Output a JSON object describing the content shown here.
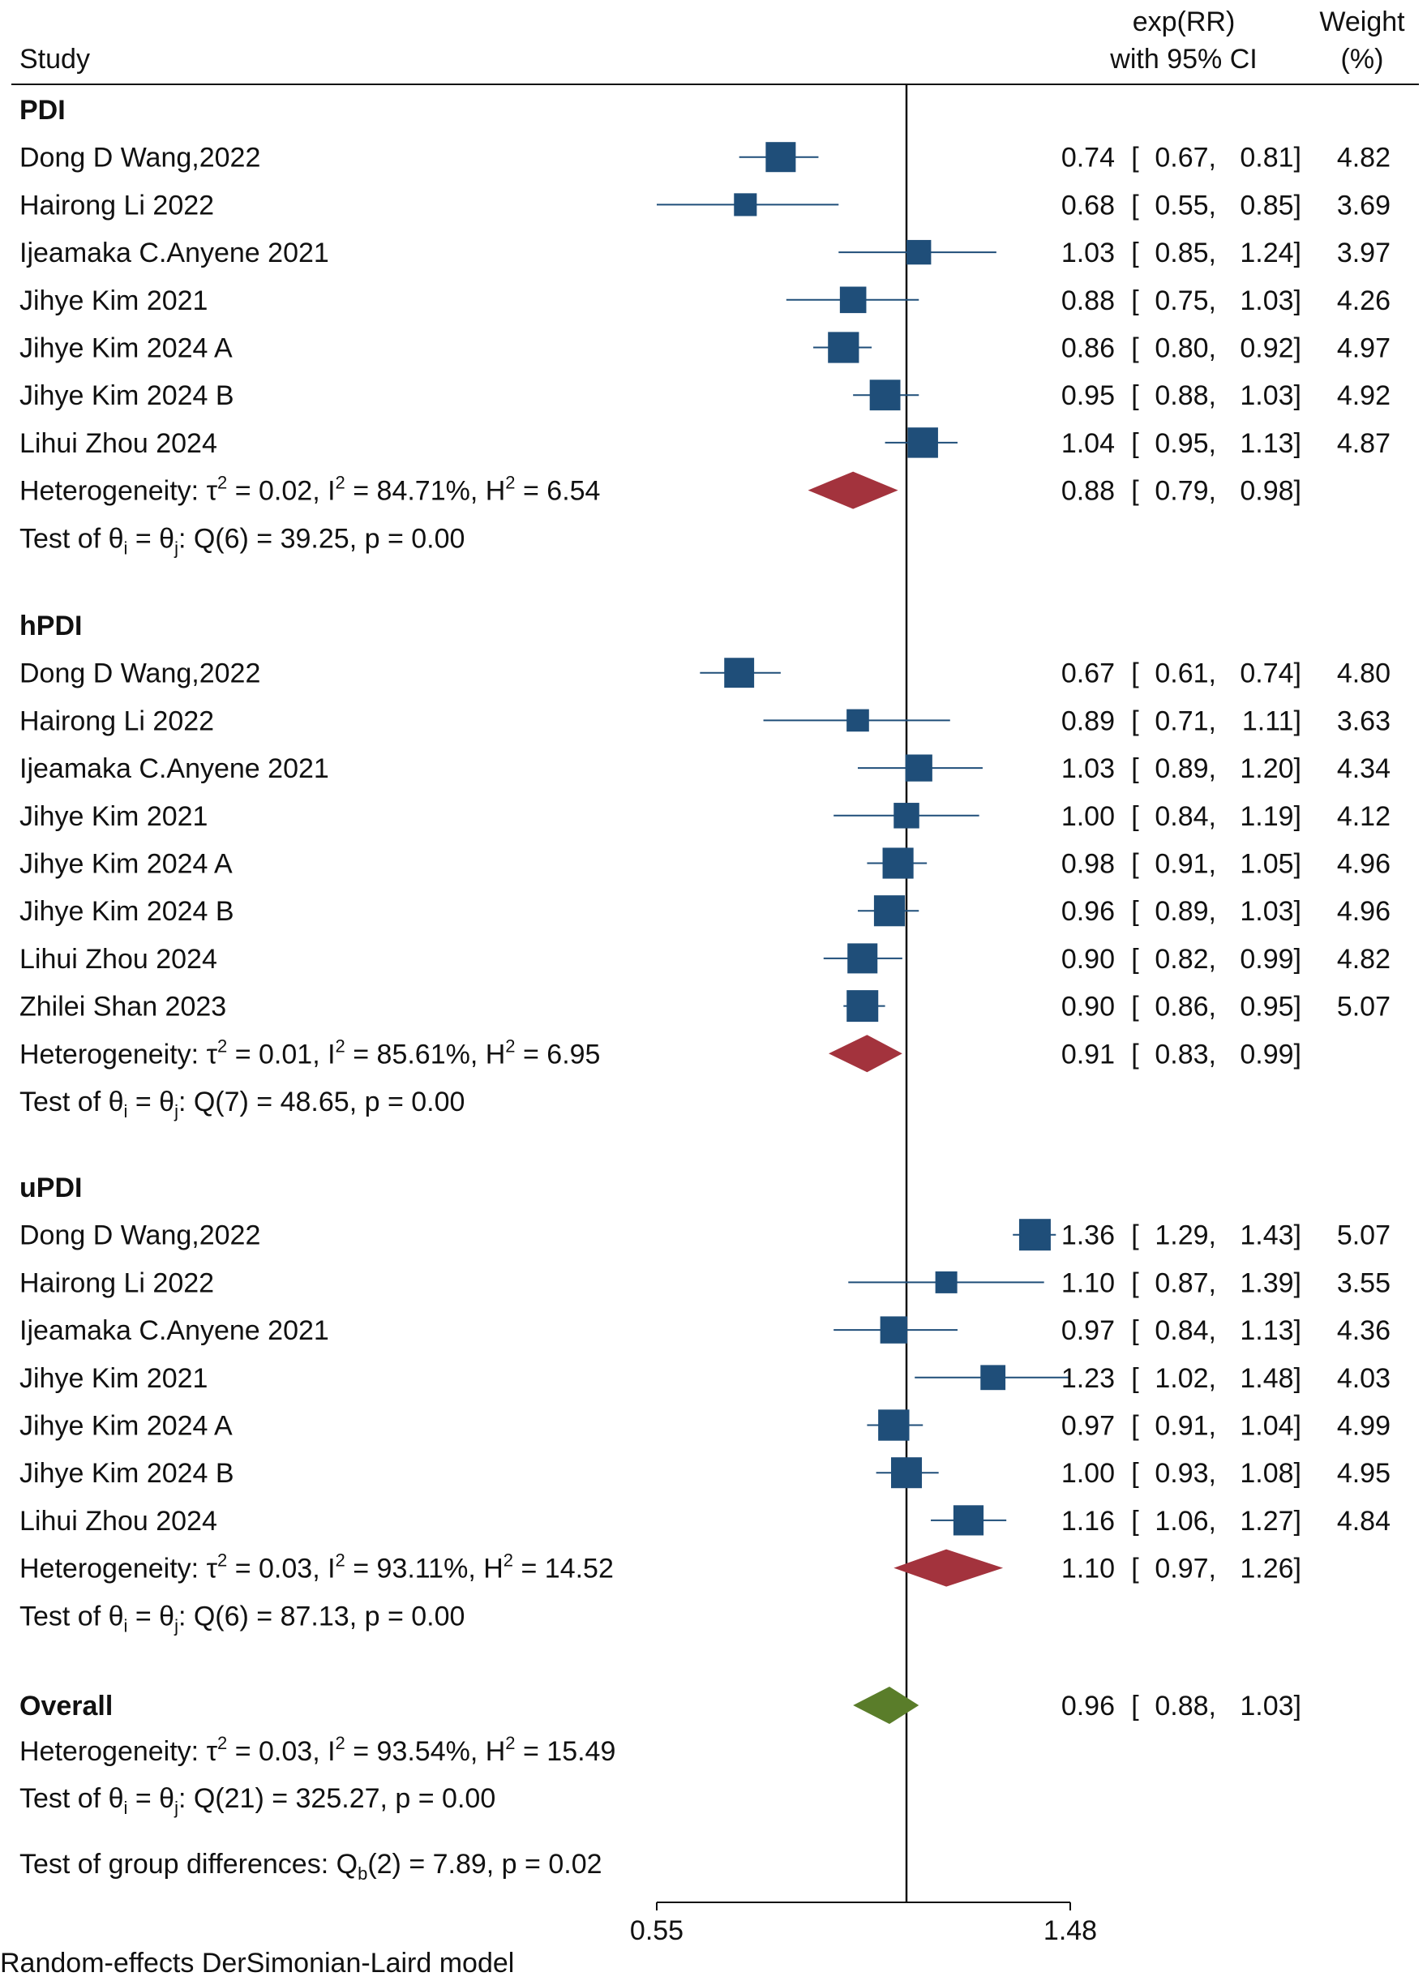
{
  "chart_data": {
    "type": "forest",
    "header": {
      "study": "Study",
      "effect_line1": "exp(RR)",
      "effect_line2": "with 95% CI",
      "weight_line1": "Weight",
      "weight_line2": "(%)"
    },
    "x_axis": {
      "scale": "log",
      "min": 0.55,
      "max": 1.48,
      "null_line": 1.0,
      "tick_labels": [
        "0.55",
        "1.48"
      ]
    },
    "groups": [
      {
        "name": "PDI",
        "studies": [
          {
            "label": "Dong D Wang,2022",
            "rr": 0.74,
            "lo": 0.67,
            "hi": 0.81,
            "rr_text": "0.74",
            "lo_text": "0.67",
            "hi_text": "0.81",
            "weight": "4.82"
          },
          {
            "label": "Hairong Li 2022",
            "rr": 0.68,
            "lo": 0.55,
            "hi": 0.85,
            "rr_text": "0.68",
            "lo_text": "0.55",
            "hi_text": "0.85",
            "weight": "3.69"
          },
          {
            "label": "Ijeamaka C.Anyene 2021",
            "rr": 1.03,
            "lo": 0.85,
            "hi": 1.24,
            "rr_text": "1.03",
            "lo_text": "0.85",
            "hi_text": "1.24",
            "weight": "3.97"
          },
          {
            "label": "Jihye Kim 2021",
            "rr": 0.88,
            "lo": 0.75,
            "hi": 1.03,
            "rr_text": "0.88",
            "lo_text": "0.75",
            "hi_text": "1.03",
            "weight": "4.26"
          },
          {
            "label": "Jihye Kim 2024 A",
            "rr": 0.86,
            "lo": 0.8,
            "hi": 0.92,
            "rr_text": "0.86",
            "lo_text": "0.80",
            "hi_text": "0.92",
            "weight": "4.97"
          },
          {
            "label": "Jihye Kim 2024 B",
            "rr": 0.95,
            "lo": 0.88,
            "hi": 1.03,
            "rr_text": "0.95",
            "lo_text": "0.88",
            "hi_text": "1.03",
            "weight": "4.92"
          },
          {
            "label": "Lihui Zhou 2024",
            "rr": 1.04,
            "lo": 0.95,
            "hi": 1.13,
            "rr_text": "1.04",
            "lo_text": "0.95",
            "hi_text": "1.13",
            "weight": "4.87"
          }
        ],
        "pooled": {
          "rr": 0.88,
          "lo": 0.79,
          "hi": 0.98,
          "rr_text": "0.88",
          "lo_text": "0.79",
          "hi_text": "0.98"
        },
        "heterogeneity": {
          "tau2": "0.02",
          "i2": "84.71%",
          "h2": "6.54"
        },
        "test": {
          "df": "6",
          "q": "39.25",
          "p": "0.00"
        }
      },
      {
        "name": "hPDI",
        "studies": [
          {
            "label": "Dong D Wang,2022",
            "rr": 0.67,
            "lo": 0.61,
            "hi": 0.74,
            "rr_text": "0.67",
            "lo_text": "0.61",
            "hi_text": "0.74",
            "weight": "4.80"
          },
          {
            "label": "Hairong Li 2022",
            "rr": 0.89,
            "lo": 0.71,
            "hi": 1.11,
            "rr_text": "0.89",
            "lo_text": "0.71",
            "hi_text": "1.11",
            "weight": "3.63"
          },
          {
            "label": "Ijeamaka C.Anyene 2021",
            "rr": 1.03,
            "lo": 0.89,
            "hi": 1.2,
            "rr_text": "1.03",
            "lo_text": "0.89",
            "hi_text": "1.20",
            "weight": "4.34"
          },
          {
            "label": "Jihye Kim 2021",
            "rr": 1.0,
            "lo": 0.84,
            "hi": 1.19,
            "rr_text": "1.00",
            "lo_text": "0.84",
            "hi_text": "1.19",
            "weight": "4.12"
          },
          {
            "label": "Jihye Kim 2024 A",
            "rr": 0.98,
            "lo": 0.91,
            "hi": 1.05,
            "rr_text": "0.98",
            "lo_text": "0.91",
            "hi_text": "1.05",
            "weight": "4.96"
          },
          {
            "label": "Jihye Kim 2024 B",
            "rr": 0.96,
            "lo": 0.89,
            "hi": 1.03,
            "rr_text": "0.96",
            "lo_text": "0.89",
            "hi_text": "1.03",
            "weight": "4.96"
          },
          {
            "label": "Lihui Zhou 2024",
            "rr": 0.9,
            "lo": 0.82,
            "hi": 0.99,
            "rr_text": "0.90",
            "lo_text": "0.82",
            "hi_text": "0.99",
            "weight": "4.82"
          },
          {
            "label": "Zhilei Shan 2023",
            "rr": 0.9,
            "lo": 0.86,
            "hi": 0.95,
            "rr_text": "0.90",
            "lo_text": "0.86",
            "hi_text": "0.95",
            "weight": "5.07"
          }
        ],
        "pooled": {
          "rr": 0.91,
          "lo": 0.83,
          "hi": 0.99,
          "rr_text": "0.91",
          "lo_text": "0.83",
          "hi_text": "0.99"
        },
        "heterogeneity": {
          "tau2": "0.01",
          "i2": "85.61%",
          "h2": "6.95"
        },
        "test": {
          "df": "7",
          "q": "48.65",
          "p": "0.00"
        }
      },
      {
        "name": "uPDI",
        "studies": [
          {
            "label": "Dong D Wang,2022",
            "rr": 1.36,
            "lo": 1.29,
            "hi": 1.43,
            "rr_text": "1.36",
            "lo_text": "1.29",
            "hi_text": "1.43",
            "weight": "5.07"
          },
          {
            "label": "Hairong Li 2022",
            "rr": 1.1,
            "lo": 0.87,
            "hi": 1.39,
            "rr_text": "1.10",
            "lo_text": "0.87",
            "hi_text": "1.39",
            "weight": "3.55"
          },
          {
            "label": "Ijeamaka C.Anyene 2021",
            "rr": 0.97,
            "lo": 0.84,
            "hi": 1.13,
            "rr_text": "0.97",
            "lo_text": "0.84",
            "hi_text": "1.13",
            "weight": "4.36"
          },
          {
            "label": "Jihye Kim 2021",
            "rr": 1.23,
            "lo": 1.02,
            "hi": 1.48,
            "rr_text": "1.23",
            "lo_text": "1.02",
            "hi_text": "1.48",
            "weight": "4.03"
          },
          {
            "label": "Jihye Kim 2024 A",
            "rr": 0.97,
            "lo": 0.91,
            "hi": 1.04,
            "rr_text": "0.97",
            "lo_text": "0.91",
            "hi_text": "1.04",
            "weight": "4.99"
          },
          {
            "label": "Jihye Kim 2024 B",
            "rr": 1.0,
            "lo": 0.93,
            "hi": 1.08,
            "rr_text": "1.00",
            "lo_text": "0.93",
            "hi_text": "1.08",
            "weight": "4.95"
          },
          {
            "label": "Lihui Zhou 2024",
            "rr": 1.16,
            "lo": 1.06,
            "hi": 1.27,
            "rr_text": "1.16",
            "lo_text": "1.06",
            "hi_text": "1.27",
            "weight": "4.84"
          }
        ],
        "pooled": {
          "rr": 1.1,
          "lo": 0.97,
          "hi": 1.26,
          "rr_text": "1.10",
          "lo_text": "0.97",
          "hi_text": "1.26"
        },
        "heterogeneity": {
          "tau2": "0.03",
          "i2": "93.11%",
          "h2": "14.52"
        },
        "test": {
          "df": "6",
          "q": "87.13",
          "p": "0.00"
        }
      }
    ],
    "overall": {
      "label": "Overall",
      "rr": 0.96,
      "lo": 0.88,
      "hi": 1.03,
      "rr_text": "0.96",
      "lo_text": "0.88",
      "hi_text": "1.03",
      "heterogeneity": {
        "tau2": "0.03",
        "i2": "93.54%",
        "h2": "15.49"
      },
      "test": {
        "df": "21",
        "q": "325.27",
        "p": "0.00"
      }
    },
    "group_test": {
      "df": "2",
      "q": "7.89",
      "p": "0.02"
    },
    "footnote": "Random-effects DerSimonian-Laird model"
  },
  "colors": {
    "study_marker": "#1f4e79",
    "ci_line": "#1f4e79",
    "subgroup_diamond": "#a3333d",
    "overall_diamond": "#5a7d2a",
    "axis": "#111111"
  }
}
